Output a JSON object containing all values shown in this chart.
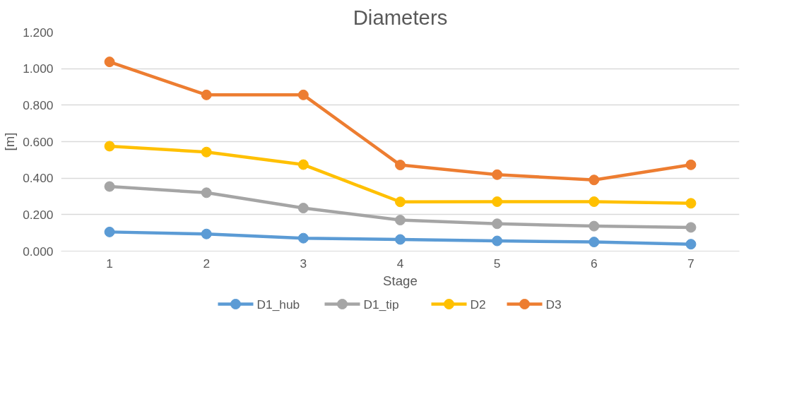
{
  "chart_data": {
    "type": "line",
    "title": "Diameters",
    "xlabel": "Stage",
    "ylabel": "[m]",
    "categories": [
      "1",
      "2",
      "3",
      "4",
      "5",
      "6",
      "7"
    ],
    "series": [
      {
        "name": "D1_hub",
        "color": "#5b9bd5",
        "values": [
          0.105,
          0.094,
          0.071,
          0.064,
          0.056,
          0.05,
          0.038
        ]
      },
      {
        "name": "D1_tip",
        "color": "#a5a5a5",
        "values": [
          0.354,
          0.32,
          0.236,
          0.17,
          0.15,
          0.137,
          0.13
        ]
      },
      {
        "name": "D2",
        "color": "#ffc000",
        "values": [
          0.575,
          0.543,
          0.474,
          0.27,
          0.271,
          0.271,
          0.262
        ]
      },
      {
        "name": "D3",
        "color": "#ed7d31",
        "values": [
          1.037,
          0.856,
          0.856,
          0.472,
          0.419,
          0.39,
          0.473
        ]
      }
    ],
    "ylim": [
      0,
      1.2
    ],
    "yticks": [
      {
        "value": 0,
        "label": "0.000"
      },
      {
        "value": 0.2,
        "label": "0.200"
      },
      {
        "value": 0.4,
        "label": "0.400"
      },
      {
        "value": 0.6,
        "label": "0.600"
      },
      {
        "value": 0.8,
        "label": "0.800"
      },
      {
        "value": 1.0,
        "label": "1.000"
      },
      {
        "value": 1.2,
        "label": "1.200"
      }
    ],
    "grid": "y",
    "legend": "bottom",
    "marker": "circle",
    "line_style": "solid"
  }
}
